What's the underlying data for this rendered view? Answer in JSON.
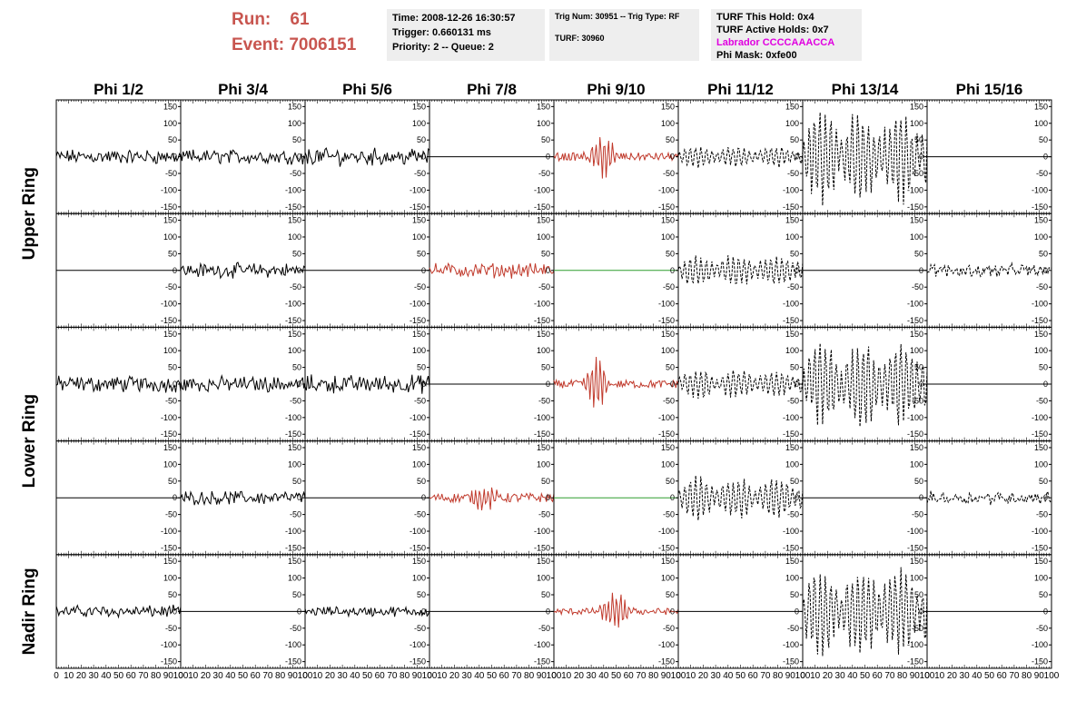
{
  "header": {
    "run_label": "Run:    61",
    "event_label": "Event: 7006151",
    "time": "Time: 2008-12-26 16:30:57",
    "trigger": "Trigger: 0.660131 ms",
    "priority": "Priority: 2 -- Queue: 2",
    "trig_num": "Trig Num: 30951 -- Trig Type: RF",
    "turf": "TURF: 30960",
    "turf_hold": "TURF This Hold: 0x4",
    "turf_active": "TURF Active Holds: 0x7",
    "labrador": "Labrador CCCCAAACCA",
    "phi_mask": "Phi Mask: 0xfe00"
  },
  "colors": {
    "run_text": "#c8554f",
    "highlight_trace": "#c0392b",
    "normal_trace": "#000000",
    "flat_green": "#2e9e2e",
    "labrador_text": "#e000e0",
    "info_bg": "#eeeeee"
  },
  "chart_data": {
    "type": "line",
    "columns": [
      "Phi 1/2",
      "Phi 3/4",
      "Phi 5/6",
      "Phi 7/8",
      "Phi 9/10",
      "Phi 11/12",
      "Phi 13/14",
      "Phi 15/16"
    ],
    "ring_labels": [
      {
        "text": "Upper Ring",
        "rows": [
          0,
          1
        ]
      },
      {
        "text": "Lower Ring",
        "rows": [
          2,
          3
        ]
      },
      {
        "text": "Nadir Ring",
        "rows": [
          4,
          4
        ]
      }
    ],
    "xlim": [
      0,
      100
    ],
    "ylim": [
      -170,
      170
    ],
    "x_ticks": [
      0,
      10,
      20,
      30,
      40,
      50,
      60,
      70,
      80,
      90,
      100
    ],
    "x_tick_labels": [
      "0",
      "10",
      "20",
      "30",
      "40",
      "50",
      "60",
      "70",
      "80",
      "90",
      "100"
    ],
    "y_ticks": [
      150,
      100,
      50,
      0,
      -50,
      -100,
      -150
    ],
    "y_tick_labels": [
      "150",
      "100",
      "50",
      "0",
      "-50",
      "-100",
      "-150"
    ],
    "panels": [
      [
        {
          "kind": "noise",
          "amp": 16,
          "color": "black",
          "style": "solid"
        },
        {
          "kind": "flat",
          "color": "black",
          "style": "solid"
        },
        {
          "kind": "noise",
          "amp": 18,
          "color": "black",
          "style": "solid"
        },
        {
          "kind": "flat",
          "color": "black",
          "style": "solid"
        },
        {
          "kind": "noise",
          "amp": 13,
          "color": "black",
          "style": "solid"
        }
      ],
      [
        {
          "kind": "noise",
          "amp": 16,
          "color": "black",
          "style": "solid"
        },
        {
          "kind": "noise",
          "amp": 16,
          "color": "black",
          "style": "solid"
        },
        {
          "kind": "noise",
          "amp": 17,
          "color": "black",
          "style": "solid"
        },
        {
          "kind": "noise",
          "amp": 15,
          "color": "black",
          "style": "solid"
        },
        {
          "kind": "flat",
          "color": "black",
          "style": "solid"
        }
      ],
      [
        {
          "kind": "noise",
          "amp": 19,
          "color": "black",
          "style": "solid"
        },
        {
          "kind": "flat",
          "color": "black",
          "style": "solid"
        },
        {
          "kind": "noise",
          "amp": 20,
          "color": "black",
          "style": "solid"
        },
        {
          "kind": "flat",
          "color": "black",
          "style": "solid"
        },
        {
          "kind": "noise",
          "amp": 11,
          "color": "black",
          "style": "solid"
        }
      ],
      [
        {
          "kind": "flat",
          "color": "black",
          "style": "solid"
        },
        {
          "kind": "noise",
          "amp": 16,
          "color": "red",
          "style": "solid"
        },
        {
          "kind": "flat",
          "color": "black",
          "style": "solid"
        },
        {
          "kind": "pulse",
          "amp": 14,
          "peak": 35,
          "center": 45,
          "width": 9,
          "color": "red",
          "style": "solid"
        },
        {
          "kind": "flat",
          "color": "black",
          "style": "solid"
        }
      ],
      [
        {
          "kind": "pulse",
          "amp": 12,
          "peak": 70,
          "center": 40,
          "width": 9,
          "color": "red",
          "style": "solid"
        },
        {
          "kind": "flat",
          "color": "green",
          "style": "solid"
        },
        {
          "kind": "pulse",
          "amp": 12,
          "peak": 75,
          "center": 35,
          "width": 8,
          "color": "red",
          "style": "solid"
        },
        {
          "kind": "flat",
          "color": "green",
          "style": "solid"
        },
        {
          "kind": "pulse",
          "amp": 10,
          "peak": 55,
          "center": 50,
          "width": 10,
          "color": "red",
          "style": "solid"
        }
      ],
      [
        {
          "kind": "beat",
          "amp": 30,
          "color": "black",
          "style": "dashed"
        },
        {
          "kind": "beat",
          "amp": 45,
          "color": "black",
          "style": "dashed"
        },
        {
          "kind": "beat",
          "amp": 40,
          "color": "black",
          "style": "dashed"
        },
        {
          "kind": "beat",
          "amp": 60,
          "color": "black",
          "style": "dashed"
        },
        {
          "kind": "flat",
          "color": "black",
          "style": "solid"
        }
      ],
      [
        {
          "kind": "beat",
          "amp": 130,
          "color": "black",
          "style": "dashed"
        },
        {
          "kind": "flat",
          "color": "black",
          "style": "solid"
        },
        {
          "kind": "beat",
          "amp": 120,
          "color": "black",
          "style": "dashed"
        },
        {
          "kind": "flat",
          "color": "black",
          "style": "solid"
        },
        {
          "kind": "beat",
          "amp": 125,
          "color": "black",
          "style": "dashed"
        }
      ],
      [
        {
          "kind": "flat",
          "color": "black",
          "style": "solid"
        },
        {
          "kind": "noise",
          "amp": 14,
          "color": "black",
          "style": "dashed"
        },
        {
          "kind": "flat",
          "color": "black",
          "style": "solid"
        },
        {
          "kind": "noise",
          "amp": 14,
          "color": "black",
          "style": "dashed"
        },
        {
          "kind": "flat",
          "color": "black",
          "style": "solid"
        }
      ]
    ]
  }
}
